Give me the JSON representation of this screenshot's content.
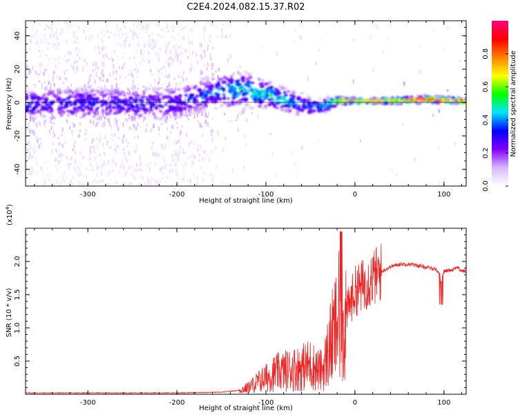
{
  "chart_data": [
    {
      "type": "heatmap",
      "title": "C2E4.2024.082.15.37.R02",
      "xlabel": "Height of straight line (km)",
      "ylabel": "Frequency (Hz)",
      "xlim": [
        -370,
        125
      ],
      "ylim": [
        -50,
        49
      ],
      "xticks": [
        -300,
        -200,
        -100,
        0,
        100
      ],
      "xtick_labels": [
        "-300",
        "-200",
        "-100",
        "0",
        "100"
      ],
      "yticks": [
        -40,
        -20,
        0,
        20,
        40
      ],
      "ytick_labels": [
        "-40",
        "-20",
        "0",
        "20",
        "40"
      ],
      "colorbar": {
        "label": "Normalized spectral amplitude",
        "range": [
          0,
          1
        ],
        "ticks": [
          0.0,
          0.2,
          0.4,
          0.6,
          0.8
        ],
        "tick_labels": [
          "0.0",
          "0.2",
          "0.4",
          "0.6",
          "0.8"
        ],
        "colormap": [
          "#ffffff",
          "#d8b8ff",
          "#8000ff",
          "#0000ff",
          "#00e5ff",
          "#00ff00",
          "#ffff00",
          "#ff8000",
          "#ff0000",
          "#ff0080"
        ]
      },
      "ridge": {
        "description": "dominant spectral line",
        "x": [
          -370,
          -300,
          -250,
          -200,
          -160,
          -130,
          -100,
          -70,
          -40,
          -20,
          0,
          40,
          80,
          125
        ],
        "center_hz": [
          -1,
          0,
          -1,
          0,
          6,
          8,
          5,
          0,
          -3,
          1,
          1,
          1,
          2,
          1
        ],
        "spread_hz": [
          6,
          6,
          6,
          6,
          6,
          6,
          5,
          4,
          3,
          1.5,
          1,
          1,
          1.2,
          1
        ],
        "peak_amplitude": [
          0.3,
          0.3,
          0.3,
          0.3,
          0.35,
          0.45,
          0.45,
          0.4,
          0.35,
          0.7,
          0.75,
          0.8,
          0.9,
          0.85
        ]
      }
    },
    {
      "type": "line",
      "xlabel": "Height of straight line (km)",
      "ylabel": "SNR (10 * v/v)",
      "y_multiplier": "(x10",
      "y_multiplier_exp": "4",
      "y_multiplier_close": ")",
      "xlim": [
        -370,
        125
      ],
      "ylim": [
        0,
        2.5
      ],
      "xticks": [
        -300,
        -200,
        -100,
        0,
        100
      ],
      "xtick_labels": [
        "-300",
        "-200",
        "-100",
        "0",
        "100"
      ],
      "yticks": [
        0.5,
        1.0,
        1.5,
        2.0
      ],
      "ytick_labels": [
        "0.5",
        "1.0",
        "1.5",
        "2.0"
      ],
      "color": "#ee2222",
      "series": [
        {
          "name": "SNR",
          "x": [
            -370,
            -200,
            -150,
            -130,
            -120,
            -110,
            -100,
            -90,
            -80,
            -70,
            -60,
            -50,
            -45,
            -40,
            -35,
            -30,
            -25,
            -20,
            -17,
            -15,
            -12,
            -10,
            -5,
            0,
            10,
            20,
            30,
            40,
            50,
            60,
            70,
            80,
            90,
            95,
            97,
            100,
            110,
            115,
            118,
            120,
            125
          ],
          "y": [
            0.02,
            0.02,
            0.03,
            0.06,
            0.1,
            0.18,
            0.25,
            0.32,
            0.35,
            0.38,
            0.4,
            0.45,
            0.4,
            0.35,
            0.4,
            0.65,
            0.85,
            1.05,
            1.2,
            1.0,
            0.95,
            1.2,
            1.4,
            1.55,
            1.65,
            1.75,
            1.85,
            1.92,
            1.96,
            1.96,
            1.94,
            1.91,
            1.89,
            1.82,
            1.7,
            1.85,
            1.88,
            1.92,
            1.87,
            1.86,
            1.85
          ]
        }
      ]
    }
  ]
}
